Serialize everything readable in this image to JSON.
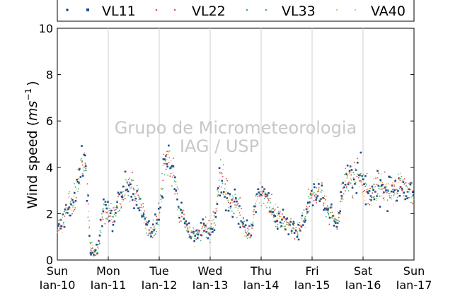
{
  "chart_data": {
    "type": "scatter",
    "title": "",
    "xlabel": "",
    "ylabel_text": "Wind speed (",
    "ylabel_unit_base": "ms",
    "ylabel_unit_exp": "−1",
    "ylabel_close": ")",
    "ylim": [
      0,
      10
    ],
    "xlim_days": [
      0,
      7
    ],
    "y_ticks": [
      "0",
      "2",
      "4",
      "6",
      "8",
      "10"
    ],
    "x_ticks": [
      {
        "day": "Sun",
        "date": "Jan-10"
      },
      {
        "day": "Mon",
        "date": "Jan-11"
      },
      {
        "day": "Tue",
        "date": "Jan-12"
      },
      {
        "day": "Wed",
        "date": "Jan-13"
      },
      {
        "day": "Thu",
        "date": "Jan-14"
      },
      {
        "day": "Fri",
        "date": "Jan-15"
      },
      {
        "day": "Sat",
        "date": "Jan-16"
      },
      {
        "day": "Sun",
        "date": "Jan-17"
      }
    ],
    "x_grid": true,
    "legend_position": "top",
    "watermark": [
      "Grupo de Micrometeorologia",
      "IAG / USP"
    ],
    "series": [
      {
        "name": "VL11",
        "color": "#1f4e8c",
        "marker": "square"
      },
      {
        "name": "VL22",
        "color": "#d9534f",
        "marker": "dot"
      },
      {
        "name": "VL33",
        "color": "#3cb371",
        "marker": "dot"
      },
      {
        "name": "VA40",
        "color": "#e8a33d",
        "marker": "dot"
      }
    ],
    "profile_x": [
      0.0,
      0.08,
      0.2,
      0.35,
      0.45,
      0.55,
      0.6,
      0.65,
      0.72,
      0.8,
      0.9,
      1.0,
      1.1,
      1.2,
      1.3,
      1.4,
      1.5,
      1.6,
      1.7,
      1.8,
      1.9,
      2.0,
      2.1,
      2.2,
      2.3,
      2.4,
      2.5,
      2.6,
      2.7,
      2.8,
      2.9,
      3.0,
      3.1,
      3.2,
      3.3,
      3.4,
      3.5,
      3.6,
      3.7,
      3.8,
      3.9,
      4.0,
      4.1,
      4.2,
      4.3,
      4.4,
      4.5,
      4.6,
      4.7,
      4.8,
      4.9,
      5.0,
      5.1,
      5.2,
      5.3,
      5.4,
      5.5,
      5.6,
      5.7,
      5.8,
      5.9,
      6.0,
      6.1,
      6.2,
      6.3,
      6.4,
      6.5,
      6.6,
      6.7,
      6.8,
      6.9,
      7.0
    ],
    "profile_y": [
      1.2,
      1.5,
      2.3,
      2.6,
      3.8,
      4.3,
      2.5,
      0.5,
      0.3,
      0.6,
      2.2,
      2.0,
      1.8,
      2.5,
      2.9,
      3.2,
      3.1,
      2.6,
      1.9,
      1.2,
      1.4,
      2.0,
      4.2,
      4.3,
      3.5,
      2.0,
      1.6,
      1.2,
      1.0,
      1.2,
      1.5,
      1.2,
      1.8,
      3.8,
      3.0,
      2.4,
      2.4,
      2.0,
      1.3,
      1.1,
      2.6,
      3.0,
      2.8,
      2.2,
      1.8,
      1.7,
      1.5,
      1.4,
      1.3,
      1.6,
      2.2,
      2.8,
      3.0,
      2.9,
      2.1,
      1.9,
      1.6,
      3.2,
      3.6,
      3.4,
      3.8,
      3.4,
      3.0,
      2.8,
      3.3,
      3.1,
      3.0,
      2.9,
      3.2,
      3.3,
      3.0,
      2.8
    ]
  }
}
